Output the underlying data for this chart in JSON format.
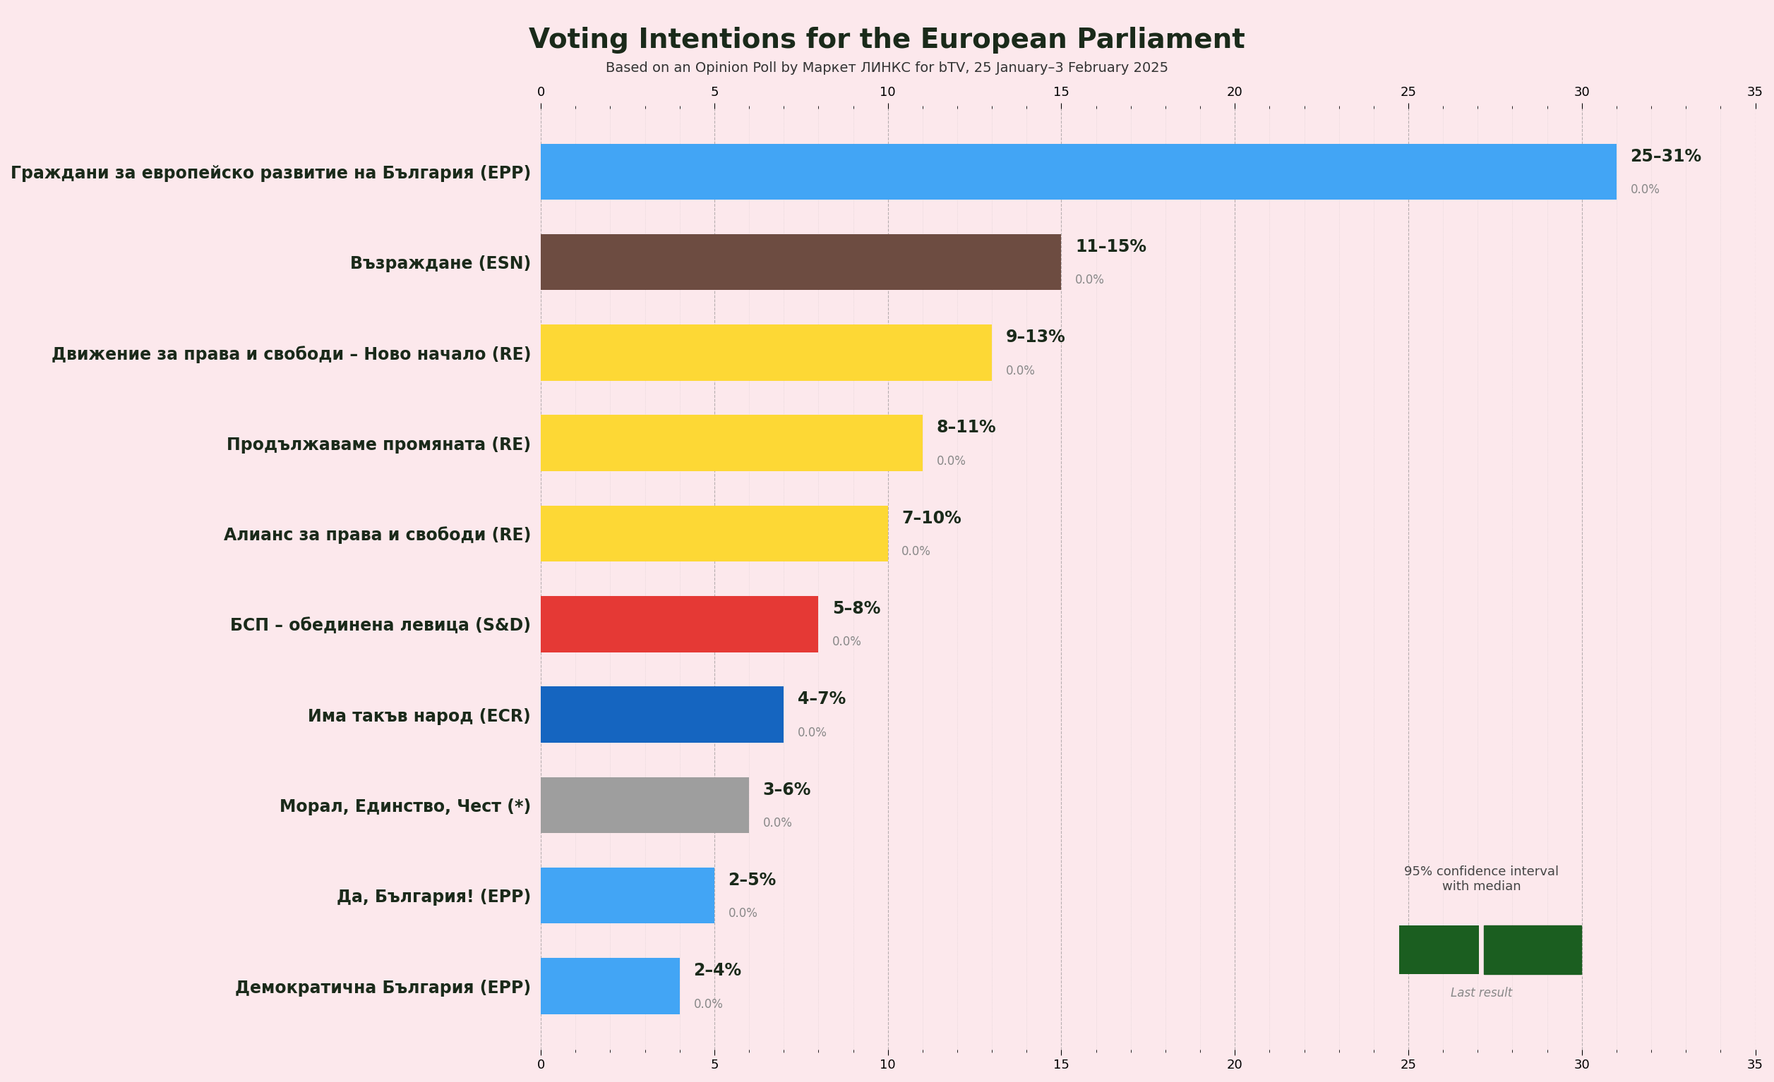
{
  "title": "Voting Intentions for the European Parliament",
  "subtitle": "Based on an Opinion Poll by Маркет ЛИНКС for bTV, 25 January–3 February 2025",
  "background_color": "#fce8ec",
  "parties": [
    {
      "name": "Граждани за европейско развитие на България (EPP)",
      "low": 25,
      "high": 31,
      "median": 25,
      "last_result": 0.0,
      "color": "#42a5f5",
      "label": "25–31%"
    },
    {
      "name": "Възраждане (ESN)",
      "low": 11,
      "high": 15,
      "median": 11,
      "last_result": 0.0,
      "color": "#6d4c41",
      "label": "11–15%"
    },
    {
      "name": "Движение за права и свободи – Ново начало (RE)",
      "low": 9,
      "high": 13,
      "median": 9,
      "last_result": 0.0,
      "color": "#fdd835",
      "label": "9–13%"
    },
    {
      "name": "Продължаваме промяната (RE)",
      "low": 8,
      "high": 11,
      "median": 8,
      "last_result": 0.0,
      "color": "#fdd835",
      "label": "8–11%"
    },
    {
      "name": "Алианс за права и свободи (RE)",
      "low": 7,
      "high": 10,
      "median": 7,
      "last_result": 0.0,
      "color": "#fdd835",
      "label": "7–10%"
    },
    {
      "name": "БСП – обединена левица (S&D)",
      "low": 5,
      "high": 8,
      "median": 5,
      "last_result": 0.0,
      "color": "#e53935",
      "label": "5–8%"
    },
    {
      "name": "Има такъв народ (ECR)",
      "low": 4,
      "high": 7,
      "median": 4,
      "last_result": 0.0,
      "color": "#1565c0",
      "label": "4–7%"
    },
    {
      "name": "Морал, Единство, Чест (*)",
      "low": 3,
      "high": 6,
      "median": 3,
      "last_result": 0.0,
      "color": "#9e9e9e",
      "label": "3–6%"
    },
    {
      "name": "Да, България! (EPP)",
      "low": 2,
      "high": 5,
      "median": 2,
      "last_result": 0.0,
      "color": "#42a5f5",
      "label": "2–5%"
    },
    {
      "name": "Демократична България (EPP)",
      "low": 2,
      "high": 4,
      "median": 2,
      "last_result": 0.0,
      "color": "#42a5f5",
      "label": "2–4%"
    }
  ],
  "xlim": [
    0,
    35
  ],
  "legend_solid_color": "#1b5e20",
  "legend_label_ci": "95% confidence interval\nwith median",
  "legend_label_last": "Last result"
}
